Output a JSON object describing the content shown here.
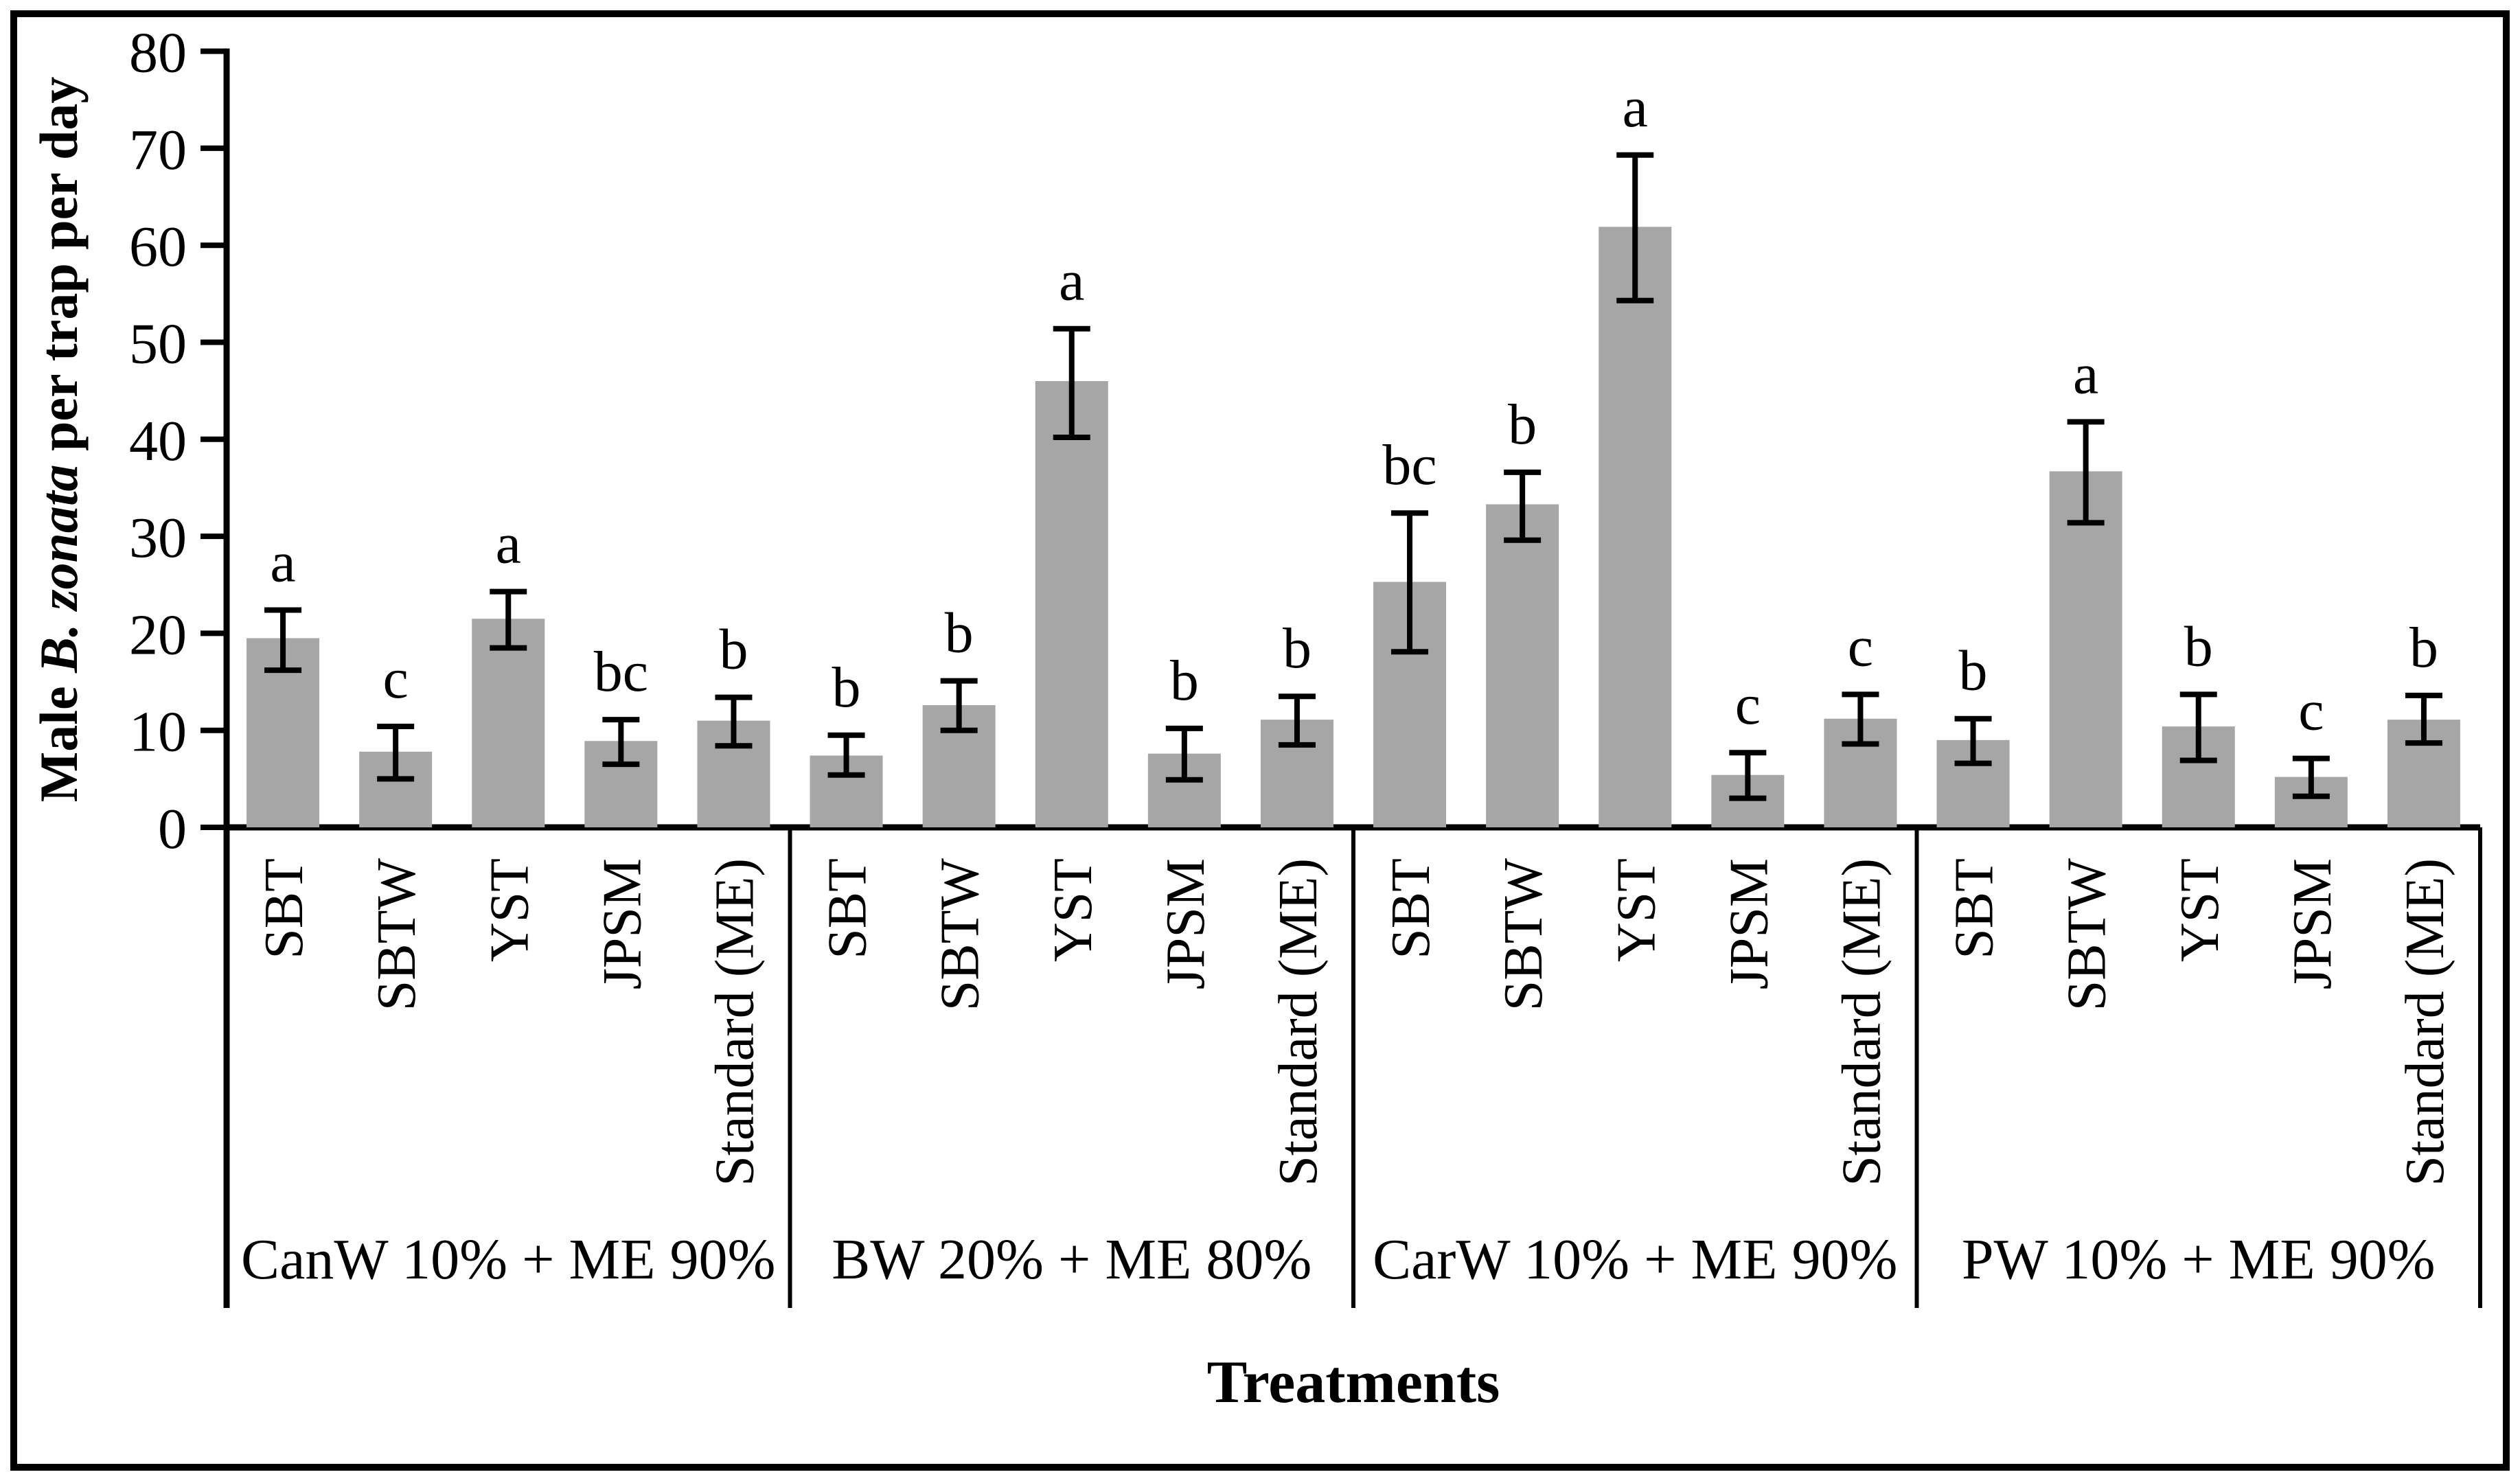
{
  "figure": {
    "x_axis_title": "Treatments",
    "y_axis_title_prefix": "Male ",
    "y_axis_title_italic": "B. zonata",
    "y_axis_title_suffix": " per trap per day"
  },
  "chart_data": {
    "type": "bar",
    "title": "",
    "xlabel": "Treatments",
    "ylabel": "Male B. zonata per trap per day",
    "ylim": [
      0,
      80
    ],
    "yticks": [
      0,
      10,
      20,
      30,
      40,
      50,
      60,
      70,
      80
    ],
    "grid": false,
    "legend": "none",
    "bar_color": "#a6a6a6",
    "error_bar_color": "#000000",
    "axis_color": "#000000",
    "trap_categories": [
      "SBT",
      "SBTW",
      "YST",
      "JPSM",
      "Standard (ME)"
    ],
    "groups": [
      {
        "label": "CanW 10% + ME 90%",
        "bars": [
          {
            "trap": "SBT",
            "value": 19.5,
            "err_low": 16.2,
            "err_high": 22.4,
            "letter": "a"
          },
          {
            "trap": "SBTW",
            "value": 7.8,
            "err_low": 5.0,
            "err_high": 10.4,
            "letter": "c"
          },
          {
            "trap": "YST",
            "value": 21.5,
            "err_low": 18.5,
            "err_high": 24.3,
            "letter": "a"
          },
          {
            "trap": "JPSM",
            "value": 8.9,
            "err_low": 6.5,
            "err_high": 11.1,
            "letter": "bc"
          },
          {
            "trap": "Standard (ME)",
            "value": 11.0,
            "err_low": 8.4,
            "err_high": 13.4,
            "letter": "b"
          }
        ]
      },
      {
        "label": "BW 20% + ME 80%",
        "bars": [
          {
            "trap": "SBT",
            "value": 7.4,
            "err_low": 5.4,
            "err_high": 9.5,
            "letter": "b"
          },
          {
            "trap": "SBTW",
            "value": 12.6,
            "err_low": 10.0,
            "err_high": 15.1,
            "letter": "b"
          },
          {
            "trap": "YST",
            "value": 46.0,
            "err_low": 40.2,
            "err_high": 51.4,
            "letter": "a"
          },
          {
            "trap": "JPSM",
            "value": 7.6,
            "err_low": 4.9,
            "err_high": 10.2,
            "letter": "b"
          },
          {
            "trap": "Standard (ME)",
            "value": 11.1,
            "err_low": 8.5,
            "err_high": 13.5,
            "letter": "b"
          }
        ]
      },
      {
        "label": "CarW 10% + ME 90%",
        "bars": [
          {
            "trap": "SBT",
            "value": 25.3,
            "err_low": 18.1,
            "err_high": 32.4,
            "letter": "bc"
          },
          {
            "trap": "SBTW",
            "value": 33.3,
            "err_low": 29.6,
            "err_high": 36.6,
            "letter": "b"
          },
          {
            "trap": "YST",
            "value": 61.9,
            "err_low": 54.3,
            "err_high": 69.3,
            "letter": "a"
          },
          {
            "trap": "JPSM",
            "value": 5.4,
            "err_low": 3.0,
            "err_high": 7.7,
            "letter": "c"
          },
          {
            "trap": "Standard (ME)",
            "value": 11.2,
            "err_low": 8.6,
            "err_high": 13.7,
            "letter": "c"
          }
        ]
      },
      {
        "label": "PW 10% + ME 90%",
        "bars": [
          {
            "trap": "SBT",
            "value": 9.0,
            "err_low": 6.6,
            "err_high": 11.2,
            "letter": "b"
          },
          {
            "trap": "SBTW",
            "value": 36.7,
            "err_low": 31.4,
            "err_high": 41.8,
            "letter": "a"
          },
          {
            "trap": "YST",
            "value": 10.4,
            "err_low": 6.9,
            "err_high": 13.7,
            "letter": "b"
          },
          {
            "trap": "JPSM",
            "value": 5.2,
            "err_low": 3.2,
            "err_high": 7.1,
            "letter": "c"
          },
          {
            "trap": "Standard (ME)",
            "value": 11.1,
            "err_low": 8.7,
            "err_high": 13.6,
            "letter": "b"
          }
        ]
      }
    ]
  }
}
